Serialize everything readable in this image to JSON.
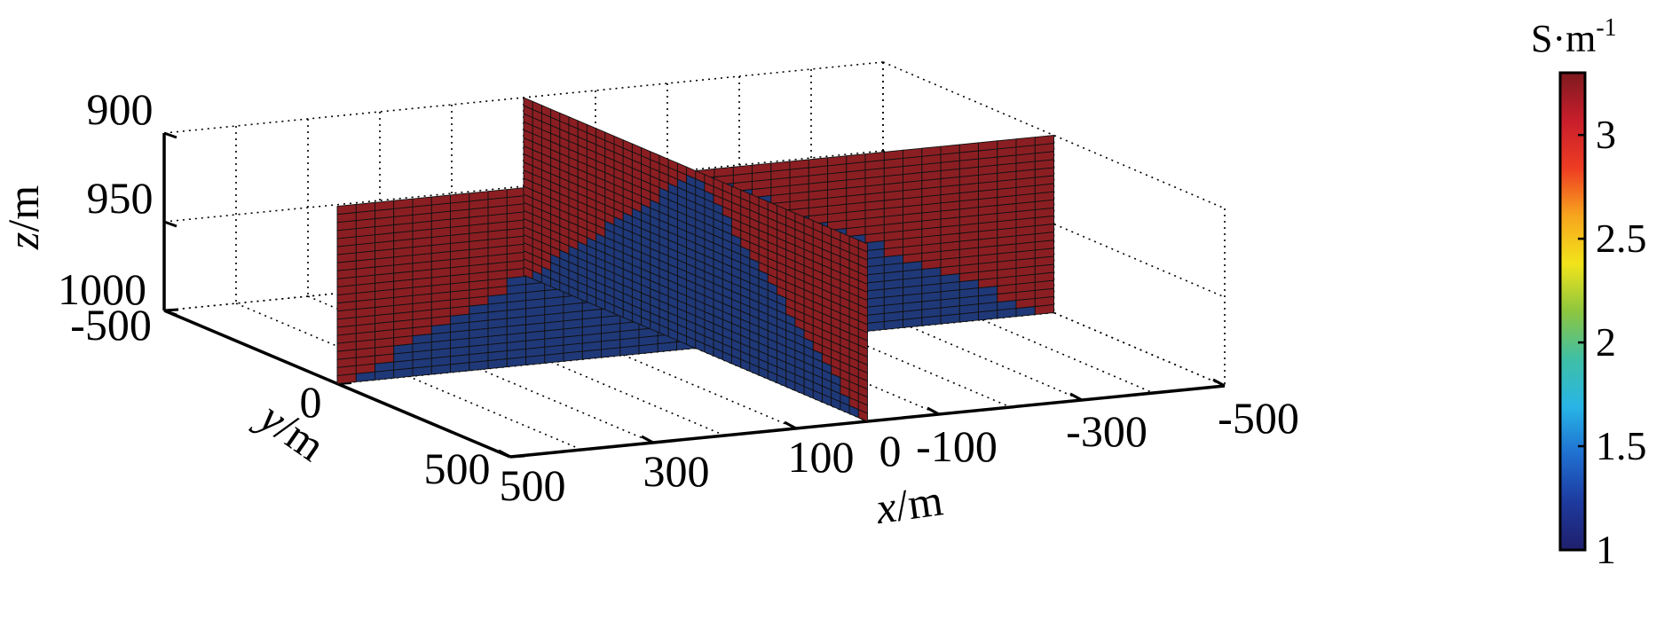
{
  "chart_data": {
    "type": "3d-slice",
    "title": "",
    "xlabel": "x/m",
    "ylabel": "y/m",
    "zlabel": "z/m",
    "x_axis": {
      "var": "x",
      "unit": "/m",
      "ticks": [
        "500",
        "300",
        "100",
        "0",
        "-100",
        "-300",
        "-500"
      ]
    },
    "y_axis": {
      "var": "y",
      "unit": "/m",
      "ticks": [
        "-500",
        "0",
        "500"
      ]
    },
    "z_axis": {
      "var": "z",
      "unit": "/m",
      "ticks": [
        "900",
        "950",
        "1000"
      ]
    },
    "xlim": [
      -500,
      500
    ],
    "ylim": [
      -500,
      500
    ],
    "zlim": [
      900,
      1000
    ],
    "grid": true,
    "grid_style": "dotted",
    "colorbar": {
      "unit_base": "S·m",
      "unit_exp": "-1",
      "range": [
        1,
        3.3
      ],
      "ticks": [
        "1",
        "1.5",
        "2",
        "2.5",
        "3"
      ],
      "colormap": [
        "#1f1f6b",
        "#1e3a9e",
        "#1f6fd1",
        "#28b5e6",
        "#3fbfa5",
        "#8dc63f",
        "#f2e41b",
        "#f7a51d",
        "#ee3c23",
        "#c81e2b",
        "#7d1a1f"
      ]
    },
    "slices": [
      {
        "plane": "xz",
        "at_y": 0,
        "x_range": [
          -500,
          500
        ],
        "z_range": [
          900,
          1000
        ]
      },
      {
        "plane": "yz",
        "at_x": 0,
        "y_range": [
          -500,
          500
        ],
        "z_range": [
          900,
          1000
        ]
      }
    ],
    "values": {
      "high_conductivity": 3.3,
      "low_conductivity": 1.0,
      "high_color": "#8b1e22",
      "low_color": "#1f3878"
    },
    "annotations": []
  }
}
